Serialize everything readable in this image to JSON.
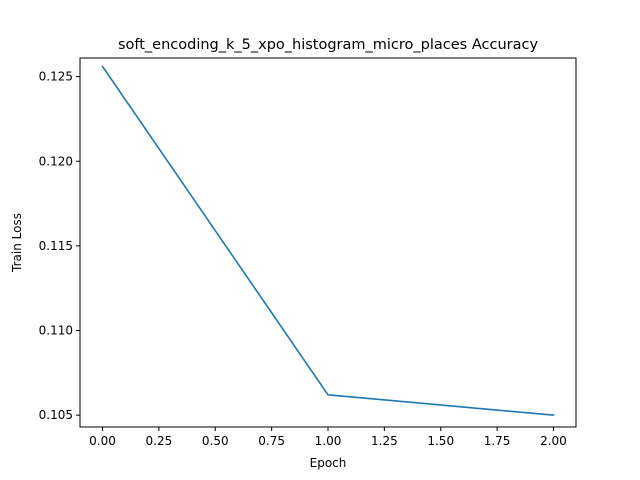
{
  "chart_data": {
    "type": "line",
    "title": "soft_encoding_k_5_xpo_histogram_micro_places Accuracy",
    "xlabel": "Epoch",
    "ylabel": "Train Loss",
    "xlim": [
      -0.1,
      2.1
    ],
    "ylim": [
      0.1043,
      0.1261
    ],
    "grid": false,
    "x_ticks": [
      0.0,
      0.25,
      0.5,
      0.75,
      1.0,
      1.25,
      1.5,
      1.75,
      2.0
    ],
    "x_tick_labels": [
      "0.00",
      "0.25",
      "0.50",
      "0.75",
      "1.00",
      "1.25",
      "1.50",
      "1.75",
      "2.00"
    ],
    "y_ticks": [
      0.105,
      0.11,
      0.115,
      0.12,
      0.125
    ],
    "y_tick_labels": [
      "0.105",
      "0.110",
      "0.115",
      "0.120",
      "0.125"
    ],
    "series": [
      {
        "color": "#1f77b4",
        "x": [
          0,
          1,
          2
        ],
        "y": [
          0.1256,
          0.1062,
          0.105
        ]
      }
    ]
  }
}
